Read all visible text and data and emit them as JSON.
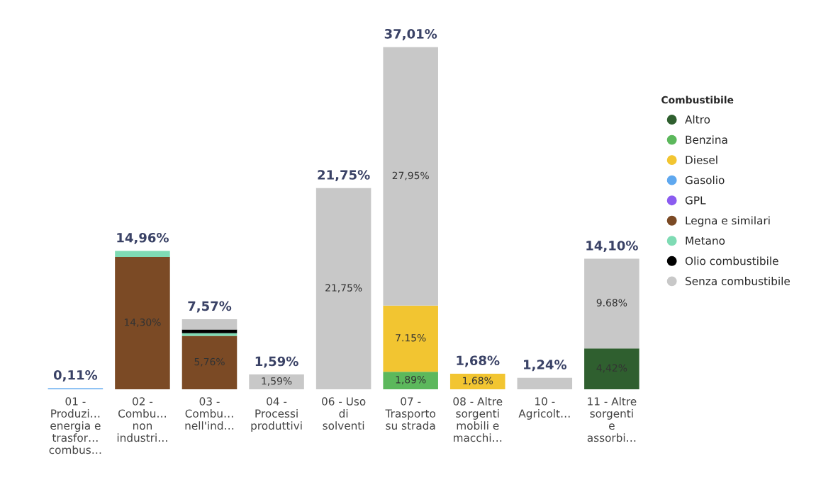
{
  "chart_data": {
    "type": "bar",
    "stacked": true,
    "legend_title": "Combustibile",
    "legend": "right",
    "grid": false,
    "categories": [
      "01 -\nProduzi…\nenergia e\ntrasfor…\ncombus…",
      "02 -\nCombu…\nnon\nindustri…",
      "03 -\nCombu…\nnell'ind…",
      "04 -\nProcessi\nproduttivi",
      "06 - Uso\ndi\nsolventi",
      "07 -\nTrasporto\nsu strada",
      "08 - Altre\nsorgenti\nmobili e\nmacchi…",
      "10 -\nAgricolt…",
      "11 - Altre\nsorgenti\ne\nassorbi…"
    ],
    "series": [
      {
        "name": "Altro",
        "color": "#2f5f2f",
        "values": [
          null,
          null,
          null,
          null,
          null,
          null,
          null,
          null,
          4.42
        ],
        "value_labels": [
          null,
          null,
          null,
          null,
          null,
          null,
          null,
          null,
          "4,42%"
        ]
      },
      {
        "name": "Benzina",
        "color": "#5cb85c",
        "values": [
          null,
          null,
          null,
          null,
          null,
          1.89,
          null,
          null,
          null
        ],
        "value_labels": [
          null,
          null,
          null,
          null,
          null,
          "1,89%",
          null,
          null,
          null
        ]
      },
      {
        "name": "Diesel",
        "color": "#f2c531",
        "values": [
          null,
          null,
          null,
          null,
          null,
          7.15,
          1.68,
          null,
          null
        ],
        "value_labels": [
          null,
          null,
          null,
          null,
          null,
          "7.15%",
          "1,68%",
          null,
          null
        ]
      },
      {
        "name": "Gasolio",
        "color": "#5fa8ef",
        "values": [
          0.11,
          null,
          null,
          null,
          null,
          null,
          null,
          null,
          null
        ]
      },
      {
        "name": "GPL",
        "color": "#8b5cf0",
        "values": [
          null,
          null,
          null,
          null,
          null,
          null,
          null,
          null,
          null
        ]
      },
      {
        "name": "Legna e similari",
        "color": "#7b4a25",
        "values": [
          null,
          14.3,
          5.76,
          null,
          null,
          null,
          null,
          null,
          null
        ],
        "value_labels": [
          null,
          "14,30%",
          "5,76%",
          null,
          null,
          null,
          null,
          null,
          null
        ]
      },
      {
        "name": "Metano",
        "color": "#7fdbb4",
        "values": [
          null,
          0.66,
          0.3,
          null,
          null,
          null,
          null,
          null,
          null
        ]
      },
      {
        "name": "Olio combustibile",
        "color": "#000000",
        "values": [
          null,
          null,
          0.4,
          null,
          null,
          null,
          null,
          null,
          null
        ]
      },
      {
        "name": "Senza combustibile",
        "color": "#c8c8c8",
        "values": [
          null,
          null,
          1.11,
          1.59,
          21.75,
          27.95,
          null,
          1.24,
          9.68
        ],
        "value_labels": [
          null,
          null,
          null,
          "1,59%",
          "21,75%",
          "27,95%",
          null,
          null,
          "9.68%"
        ]
      }
    ],
    "totals": [
      "0,11%",
      "14,96%",
      "7,57%",
      "1,59%",
      "21,75%",
      "37,01%",
      "1,68%",
      "1,24%",
      "14,10%"
    ]
  }
}
